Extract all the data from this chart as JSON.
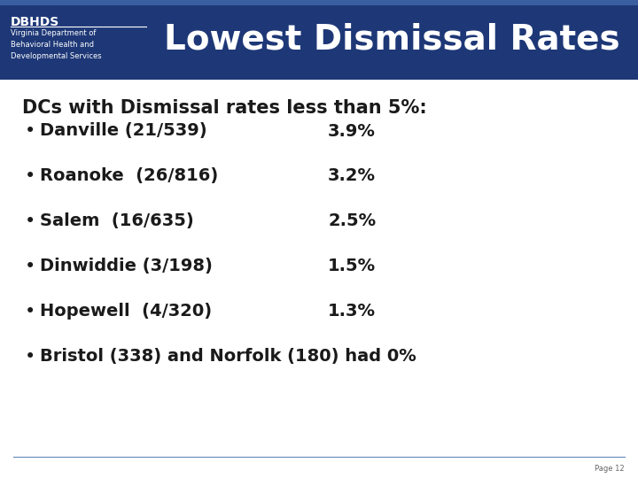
{
  "header_bg_color": "#1E3877",
  "header_stripe_color": "#3A5FA0",
  "logo_title": "DBHDS",
  "logo_line1": "Virginia Department of",
  "logo_line2": "Behavioral Health and",
  "logo_line3": "Developmental Services",
  "slide_title": "Lowest Dismissal Rates",
  "subtitle": "DCs with Dismissal rates less than 5%:",
  "bullet_items": [
    {
      "text": "Danville (21/539)",
      "rate": "3.9%"
    },
    {
      "text": "Roanoke  (26/816)",
      "rate": "3.2%"
    },
    {
      "text": "Salem  (16/635)",
      "rate": "2.5%"
    },
    {
      "text": "Dinwiddie (3/198)",
      "rate": "1.5%"
    },
    {
      "text": "Hopewell  (4/320)",
      "rate": "1.3%"
    },
    {
      "text": "Bristol (338) and Norfolk (180) had 0%",
      "rate": ""
    }
  ],
  "body_bg_color": "#FFFFFF",
  "body_text_color": "#1A1A1A",
  "subtitle_fontsize": 15,
  "bullet_fontsize": 14,
  "title_fontsize": 28,
  "logo_title_fontsize": 10,
  "logo_sub_fontsize": 6,
  "page_label": "Page 12",
  "footer_line_color": "#6688BB",
  "footer_text_color": "#666666"
}
